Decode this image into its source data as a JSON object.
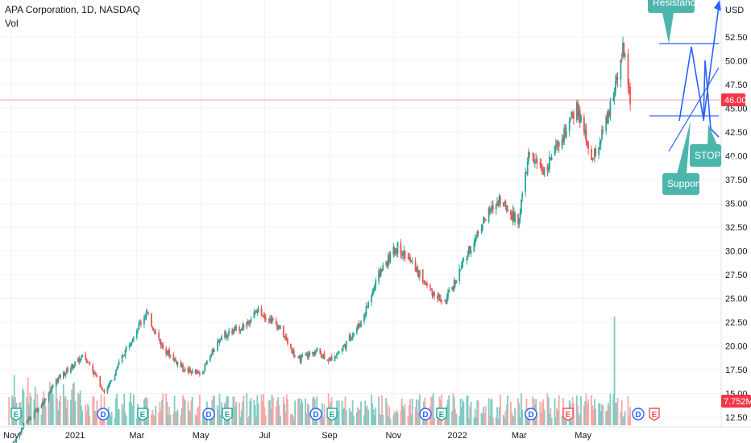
{
  "header": {
    "title": "APA Corporation, 1D, NASDAQ",
    "volume_label": "Vol"
  },
  "axis": {
    "currency": "USD"
  },
  "last_price": {
    "label": "46.00",
    "value": 46.0,
    "color": "#f23645"
  },
  "volume_badge": {
    "label": "7.752M",
    "color": "#f23645"
  },
  "annotations": [
    {
      "text": "Resistance"
    },
    {
      "text": "Support"
    },
    {
      "text": "STOP LO"
    }
  ],
  "colors": {
    "up": "#26a69a",
    "down": "#ef5350",
    "vol_up": "#80cbc4",
    "vol_down": "#f7a9a7",
    "drawing": "#2962ff",
    "callout": "#4db6ac"
  },
  "chart_data": {
    "type": "candlestick",
    "title": "APA Corporation, 1D, NASDAQ",
    "ylabel": "USD",
    "ylim": [
      11.5,
      54.5
    ],
    "y_ticks": [
      "12.50",
      "15.00",
      "17.50",
      "20.00",
      "22.50",
      "25.00",
      "27.50",
      "30.00",
      "32.50",
      "35.00",
      "37.50",
      "40.00",
      "42.50",
      "45.00",
      "47.50",
      "50.00",
      "52.50"
    ],
    "x_ticks": [
      "Nov",
      "2021",
      "Mar",
      "May",
      "Jul",
      "Sep",
      "Nov",
      "2022",
      "Mar",
      "May"
    ],
    "price_path": [
      [
        "2020-10-30",
        9.0
      ],
      [
        "2020-11-15",
        12.0
      ],
      [
        "2020-12-01",
        14.0
      ],
      [
        "2020-12-15",
        16.5
      ],
      [
        "2021-01-10",
        19.0
      ],
      [
        "2021-01-30",
        15.0
      ],
      [
        "2021-02-20",
        20.0
      ],
      [
        "2021-03-10",
        23.5
      ],
      [
        "2021-03-25",
        20.0
      ],
      [
        "2021-04-15",
        17.5
      ],
      [
        "2021-05-01",
        17.0
      ],
      [
        "2021-05-20",
        21.0
      ],
      [
        "2021-06-10",
        22.0
      ],
      [
        "2021-06-25",
        23.8
      ],
      [
        "2021-07-15",
        22.0
      ],
      [
        "2021-08-01",
        18.5
      ],
      [
        "2021-08-20",
        19.5
      ],
      [
        "2021-09-01",
        18.5
      ],
      [
        "2021-09-15",
        20.0
      ],
      [
        "2021-10-01",
        22.5
      ],
      [
        "2021-10-20",
        28.0
      ],
      [
        "2021-11-05",
        30.5
      ],
      [
        "2021-11-20",
        28.5
      ],
      [
        "2021-12-05",
        26.0
      ],
      [
        "2021-12-20",
        24.5
      ],
      [
        "2022-01-10",
        29.5
      ],
      [
        "2022-01-25",
        33.0
      ],
      [
        "2022-02-10",
        35.5
      ],
      [
        "2022-02-28",
        33.0
      ],
      [
        "2022-03-10",
        40.0
      ],
      [
        "2022-03-25",
        38.5
      ],
      [
        "2022-04-10",
        41.5
      ],
      [
        "2022-04-25",
        45.0
      ],
      [
        "2022-05-10",
        39.5
      ],
      [
        "2022-05-25",
        44.0
      ],
      [
        "2022-06-08",
        51.5
      ],
      [
        "2022-06-15",
        46.0
      ]
    ],
    "volume_spike": {
      "date": "2022-05-31",
      "relative_height": 1.0
    },
    "drawings": {
      "resistance_level": 51.8,
      "support_level": 44.2,
      "pattern": "M-shape zigzag with rising trend line"
    }
  }
}
